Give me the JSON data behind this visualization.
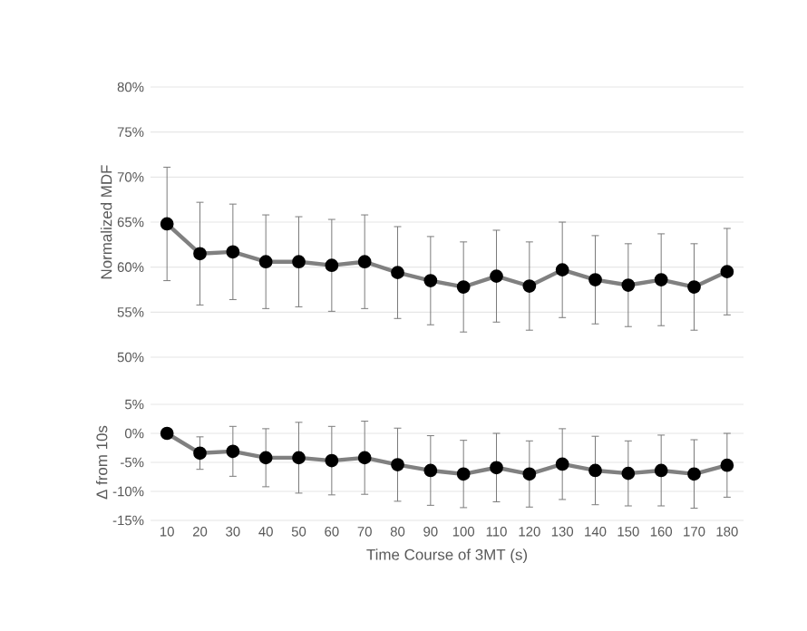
{
  "chart_data": [
    {
      "type": "line",
      "ylabel": "Normalized MDF",
      "categories": [
        "10",
        "20",
        "30",
        "40",
        "50",
        "60",
        "70",
        "80",
        "90",
        "100",
        "110",
        "120",
        "130",
        "140",
        "150",
        "160",
        "170",
        "180"
      ],
      "series": [
        {
          "color": "#808080",
          "values": [
            64.8,
            61.5,
            61.7,
            60.6,
            60.6,
            60.2,
            60.6,
            59.4,
            58.5,
            57.8,
            59.0,
            57.9,
            59.7,
            58.6,
            58.0,
            58.6,
            57.8,
            59.5
          ],
          "errors": [
            6.3,
            5.7,
            5.3,
            5.2,
            5.0,
            5.1,
            5.2,
            5.1,
            4.9,
            5.0,
            5.1,
            4.9,
            5.3,
            4.9,
            4.6,
            5.1,
            4.8,
            4.8
          ]
        }
      ],
      "ylim": [
        50,
        80
      ],
      "yticks": [
        {
          "value": 50,
          "label": "50%"
        },
        {
          "value": 55,
          "label": "55%"
        },
        {
          "value": 60,
          "label": "60%"
        },
        {
          "value": 65,
          "label": "65%"
        },
        {
          "value": 70,
          "label": "70%"
        },
        {
          "value": 75,
          "label": "75%"
        },
        {
          "value": 80,
          "label": "80%"
        }
      ],
      "grid": "y",
      "marker": "circle",
      "tick_labels": "y"
    },
    {
      "type": "line",
      "ylabel": "Δ from 10s",
      "xlabel": "Time Course of 3MT (s)",
      "categories": [
        "10",
        "20",
        "30",
        "40",
        "50",
        "60",
        "70",
        "80",
        "90",
        "100",
        "110",
        "120",
        "130",
        "140",
        "150",
        "160",
        "170",
        "180"
      ],
      "series": [
        {
          "color": "#808080",
          "values": [
            0,
            -3.4,
            -3.1,
            -4.2,
            -4.2,
            -4.7,
            -4.2,
            -5.4,
            -6.4,
            -7.0,
            -5.9,
            -7.0,
            -5.3,
            -6.4,
            -6.9,
            -6.4,
            -7.0,
            -5.5
          ],
          "errors": [
            null,
            2.8,
            4.3,
            5.0,
            6.1,
            5.9,
            6.3,
            6.3,
            6.0,
            5.8,
            5.9,
            5.7,
            6.1,
            5.9,
            5.6,
            6.1,
            5.9,
            5.5
          ]
        }
      ],
      "ylim": [
        -15,
        5
      ],
      "yticks": [
        {
          "value": -15,
          "label": "-15%"
        },
        {
          "value": -10,
          "label": "-10%"
        },
        {
          "value": -5,
          "label": "-5%"
        },
        {
          "value": 0,
          "label": "0%"
        },
        {
          "value": 5,
          "label": "5%"
        }
      ],
      "grid": "y",
      "marker": "circle"
    }
  ]
}
